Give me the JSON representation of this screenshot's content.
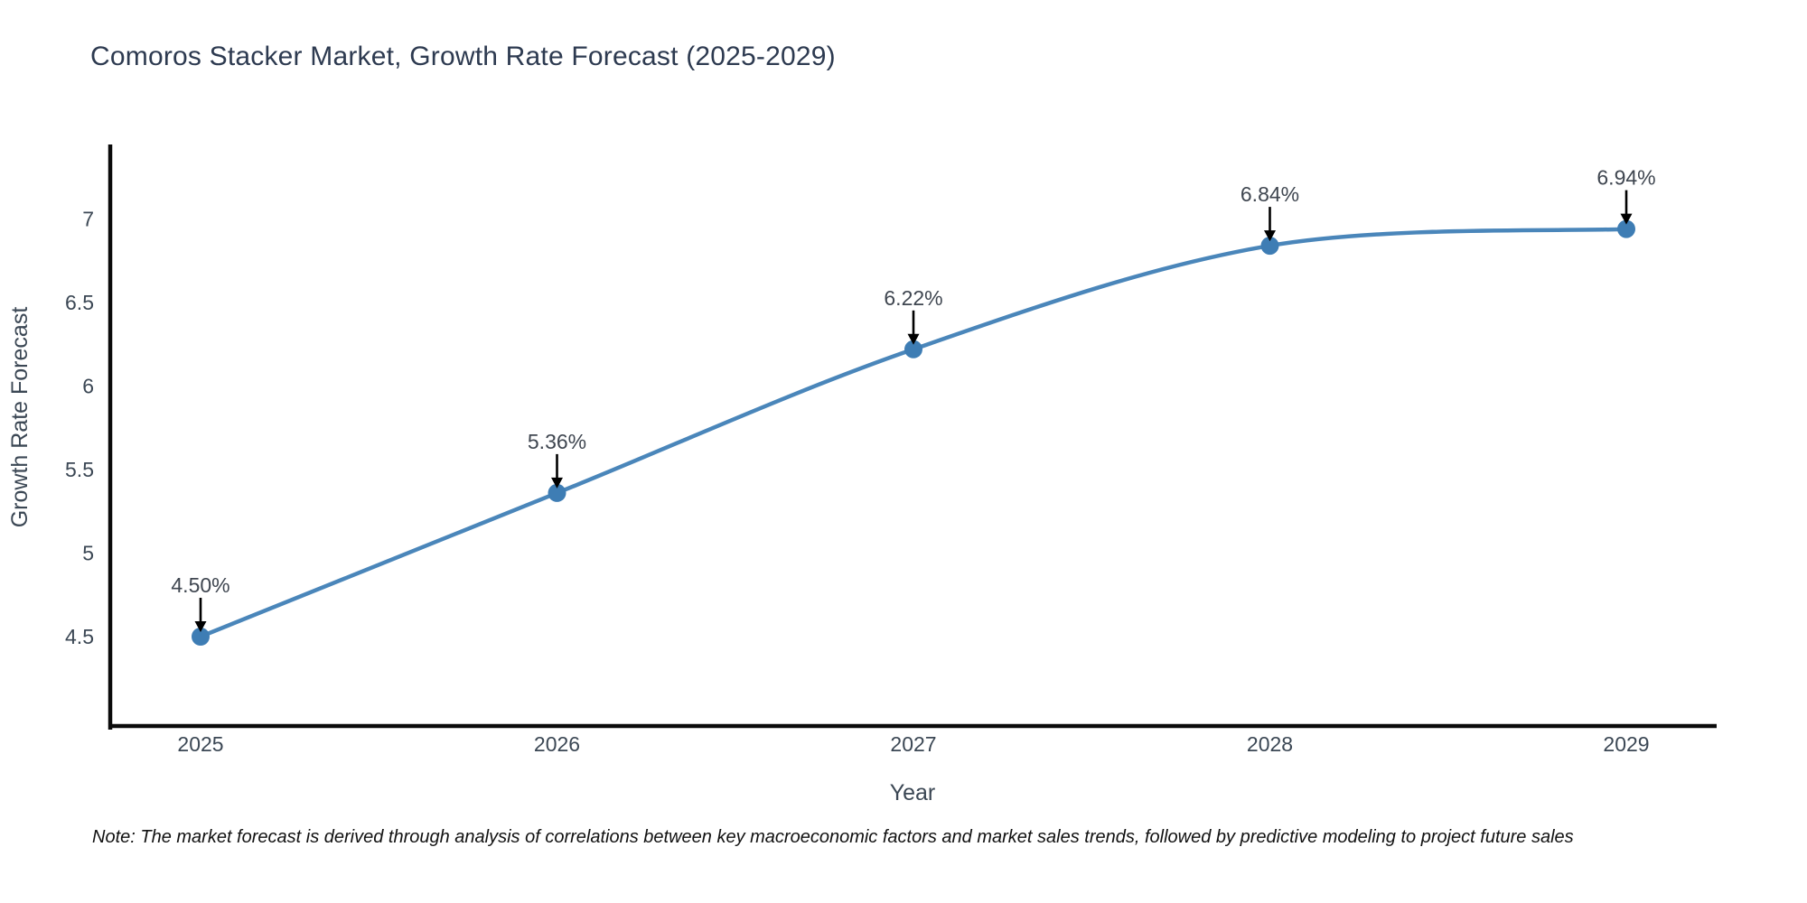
{
  "note": "Note: The market forecast is derived through analysis of correlations between key macroeconomic factors and market sales trends, followed by predictive modeling to project future sales",
  "colors": {
    "title_text": "#2d3a50",
    "tick_text": "#3b4754",
    "axis_title_text": "#3b4754",
    "annotation_text": "#3f4650",
    "annotation_arrow": "#000000",
    "axis_line": "#0a0a0a",
    "line_color": "#4a86ba",
    "marker_color": "#3e7db4",
    "note_text": "#111111",
    "background": "#ffffff"
  },
  "chart_data": {
    "type": "line",
    "title": "Comoros Stacker Market, Growth Rate Forecast (2025-2029)",
    "xlabel": "Year",
    "ylabel": "Growth Rate Forecast",
    "x": [
      2025,
      2026,
      2027,
      2028,
      2029
    ],
    "series": [
      {
        "name": "Growth Rate Forecast",
        "values": [
          4.5,
          5.36,
          6.22,
          6.84,
          6.94
        ]
      }
    ],
    "point_labels": [
      "4.50%",
      "5.36%",
      "6.22%",
      "6.84%",
      "6.94%"
    ],
    "yticks": [
      4.5,
      5,
      5.5,
      6,
      6.5,
      7
    ],
    "ytick_labels": [
      "4.5",
      "5",
      "5.5",
      "6",
      "6.5",
      "7"
    ],
    "xtick_labels": [
      "2025",
      "2026",
      "2027",
      "2028",
      "2029"
    ],
    "ylim": [
      3.98,
      7.45
    ],
    "line_shape": "spline",
    "grid": false,
    "legend_position": "none",
    "annotations_have_arrows": true
  }
}
